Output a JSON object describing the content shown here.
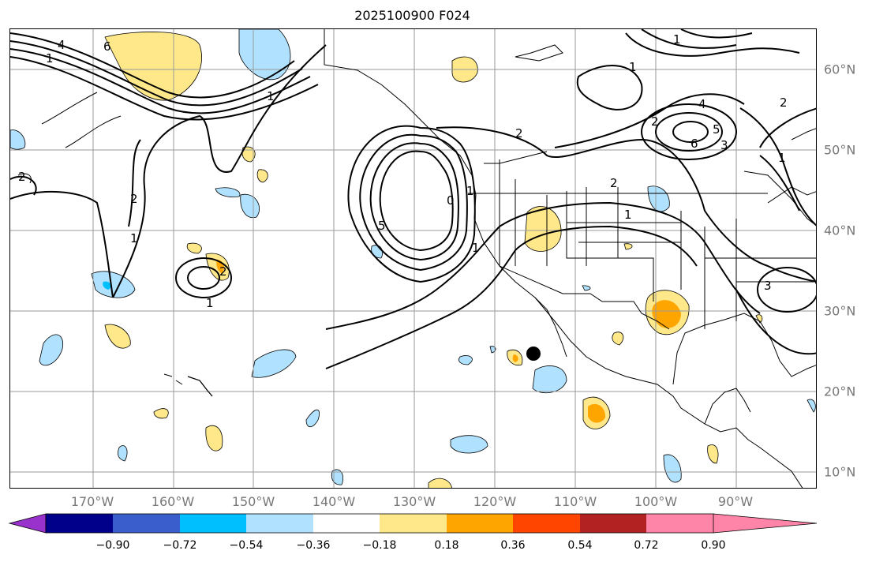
{
  "title": "2025100900 F024",
  "lon_labels": [
    "170°W",
    "160°W",
    "150°W",
    "140°W",
    "130°W",
    "120°W",
    "110°W",
    "100°W",
    "90°W"
  ],
  "lat_labels": [
    "60°N",
    "50°N",
    "40°N",
    "30°N",
    "20°N",
    "10°N"
  ],
  "colorbar": {
    "ticks": [
      "−0.90",
      "−0.72",
      "−0.54",
      "−0.36",
      "−0.18",
      "0.18",
      "0.36",
      "0.54",
      "0.72",
      "0.90"
    ],
    "colors": [
      "#9932cc",
      "#00008b",
      "#3a5fcd",
      "#00bfff",
      "#b0e2ff",
      "#ffffff",
      "#ffe88a",
      "#ffa500",
      "#ff4500",
      "#b22222",
      "#ff85a8"
    ]
  },
  "contour_labels": [
    "4",
    "6",
    "1",
    "1",
    "2",
    "1",
    "2",
    "2",
    "1",
    "5",
    "0",
    "1",
    "1",
    "2",
    "1",
    "4",
    "6",
    "5",
    "3",
    "2",
    "2",
    "1",
    "1",
    "2",
    "1",
    "3"
  ],
  "marker": "storm-center-dot"
}
